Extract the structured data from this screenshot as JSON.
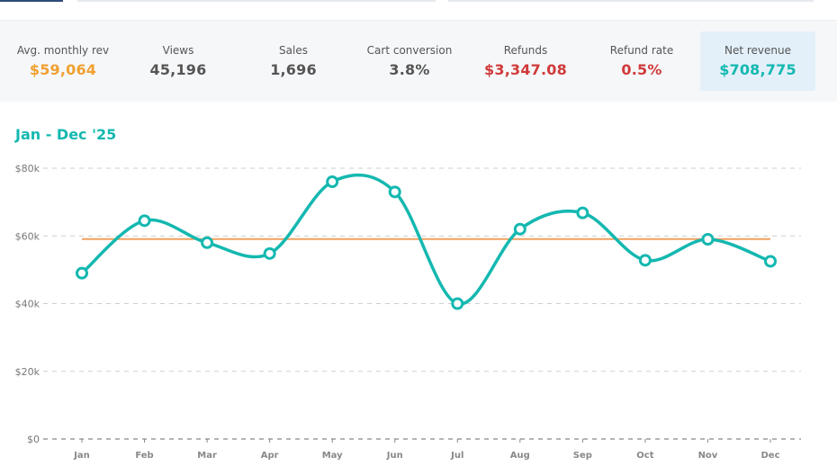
{
  "stats": [
    {
      "label": "Avg. monthly rev",
      "value": "$59,064",
      "color": "#f0a030"
    },
    {
      "label": "Views",
      "value": "45,196",
      "color": "#555555"
    },
    {
      "label": "Sales",
      "value": "1,696",
      "color": "#555555"
    },
    {
      "label": "Cart conversion",
      "value": "3.8%",
      "color": "#555555"
    },
    {
      "label": "Refunds",
      "value": "$3,347.08",
      "color": "#d03a3a"
    },
    {
      "label": "Refund rate",
      "value": "0.5%",
      "color": "#d03a3a"
    },
    {
      "label": "Net revenue",
      "value": "$708,775",
      "color": "#14b8b0",
      "selected": true
    }
  ],
  "chart_data": {
    "type": "line",
    "title": "Jan - Dec '25",
    "categories": [
      "Jan",
      "Feb",
      "Mar",
      "Apr",
      "May",
      "Jun",
      "Jul",
      "Aug",
      "Sep",
      "Oct",
      "Nov",
      "Dec"
    ],
    "series": [
      {
        "values": [
          49000,
          64500,
          58000,
          54800,
          76000,
          73000,
          40000,
          62000,
          66800,
          52800,
          59000,
          52500
        ],
        "color": "#14b8b0"
      }
    ],
    "reference_line": {
      "value": 59064,
      "color": "#f0a060"
    },
    "y_ticks": [
      {
        "value": 0,
        "label": "$0"
      },
      {
        "value": 20000,
        "label": "$20k"
      },
      {
        "value": 40000,
        "label": "$40k"
      },
      {
        "value": 60000,
        "label": "$60k"
      },
      {
        "value": 80000,
        "label": "$80k"
      }
    ],
    "ylim": [
      0,
      80000
    ],
    "grid": true,
    "legend": "none"
  }
}
